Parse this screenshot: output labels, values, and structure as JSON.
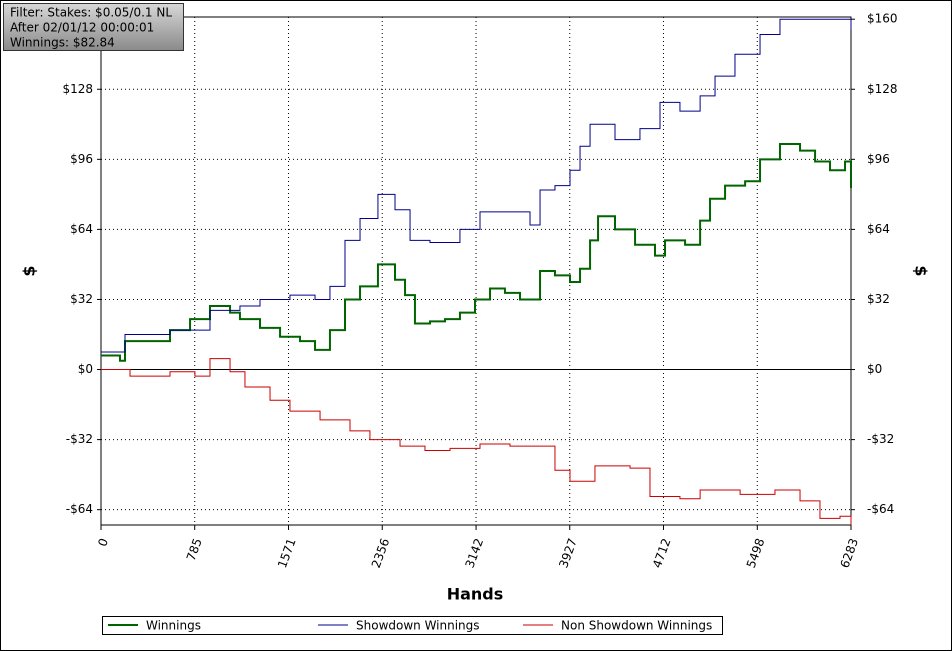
{
  "chart_data": {
    "type": "line",
    "info": [
      "Filter: Stakes: $0.05/0.1 NL",
      "After 02/01/12 00:00:01",
      "Winnings: $82.84"
    ],
    "xlabel": "Hands",
    "ylabel": "$",
    "y2label": "$",
    "xlim": [
      0,
      6283
    ],
    "xticks": [
      0,
      785,
      1571,
      2356,
      3142,
      3927,
      4712,
      5498,
      6283
    ],
    "ylim": [
      -71,
      161
    ],
    "yticks": [
      {
        "value": -64,
        "label": "-$64"
      },
      {
        "value": -32,
        "label": "-$32"
      },
      {
        "value": 0,
        "label": "$0"
      },
      {
        "value": 32,
        "label": "$32"
      },
      {
        "value": 64,
        "label": "$64"
      },
      {
        "value": 96,
        "label": "$96"
      },
      {
        "value": 128,
        "label": "$128"
      }
    ],
    "y2lim": [
      -71,
      161
    ],
    "y2ticks": [
      {
        "value": -64,
        "label": "-$64"
      },
      {
        "value": -32,
        "label": "-$32"
      },
      {
        "value": 0,
        "label": "$0"
      },
      {
        "value": 32,
        "label": "$32"
      },
      {
        "value": 64,
        "label": "$64"
      },
      {
        "value": 96,
        "label": "$96"
      },
      {
        "value": 128,
        "label": "$128"
      },
      {
        "value": 160,
        "label": "$160"
      }
    ],
    "grid": true,
    "series": [
      {
        "name": "Winnings",
        "color": "#006400",
        "x": [
          0,
          159,
          201,
          578,
          746,
          913,
          1081,
          1164,
          1332,
          1500,
          1667,
          1793,
          1918,
          2044,
          2170,
          2320,
          2463,
          2547,
          2630,
          2756,
          2882,
          3007,
          3133,
          3259,
          3384,
          3510,
          3636,
          3678,
          3803,
          3929,
          4013,
          4097,
          4164,
          4306,
          4474,
          4641,
          4725,
          4893,
          5019,
          5102,
          5228,
          5396,
          5521,
          5688,
          5856,
          5982,
          6107,
          6233,
          6283
        ],
        "values": [
          6.4,
          4,
          13,
          18,
          23,
          29,
          26,
          23,
          19,
          15,
          13,
          9,
          18,
          32,
          38,
          48,
          41,
          34,
          21,
          22,
          23,
          26,
          32,
          37,
          35,
          32,
          32,
          45,
          43,
          40,
          46,
          59,
          70,
          64,
          57,
          52,
          59,
          57,
          68,
          78,
          84,
          86,
          96,
          103,
          100,
          95,
          91,
          95,
          82.84
        ]
      },
      {
        "name": "Showdown Winnings",
        "color": "#00008b",
        "x": [
          0,
          201,
          578,
          913,
          1164,
          1332,
          1583,
          1793,
          1918,
          2044,
          2170,
          2320,
          2463,
          2589,
          2756,
          3007,
          3175,
          3384,
          3594,
          3678,
          3803,
          3929,
          4013,
          4097,
          4306,
          4515,
          4683,
          4850,
          5019,
          5144,
          5311,
          5521,
          5688,
          5940,
          6233,
          6283
        ],
        "values": [
          8,
          16,
          18,
          27,
          29,
          32,
          34,
          32,
          38,
          59,
          69,
          80,
          73,
          59,
          58,
          64,
          72,
          72,
          66,
          82,
          84,
          91,
          102,
          112,
          105,
          110,
          122,
          118,
          125,
          134,
          144,
          153,
          160,
          160,
          160,
          155
        ]
      },
      {
        "name": "Non Showdown Winnings",
        "color": "#cc0000",
        "x": [
          0,
          243,
          578,
          787,
          913,
          1081,
          1206,
          1416,
          1583,
          1835,
          2086,
          2253,
          2505,
          2714,
          2924,
          3175,
          3426,
          3678,
          3803,
          3929,
          4138,
          4432,
          4599,
          4850,
          5019,
          5354,
          5646,
          5856,
          6023,
          6191,
          6283
        ],
        "values": [
          0,
          -3,
          -1,
          -3,
          5,
          -1,
          -8,
          -14,
          -19,
          -23,
          -28,
          -32,
          -35,
          -37,
          -36,
          -34,
          -35,
          -35,
          -46,
          -51,
          -44,
          -45,
          -58,
          -59,
          -55,
          -57,
          -55,
          -60,
          -68,
          -67,
          -71
        ]
      }
    ]
  }
}
